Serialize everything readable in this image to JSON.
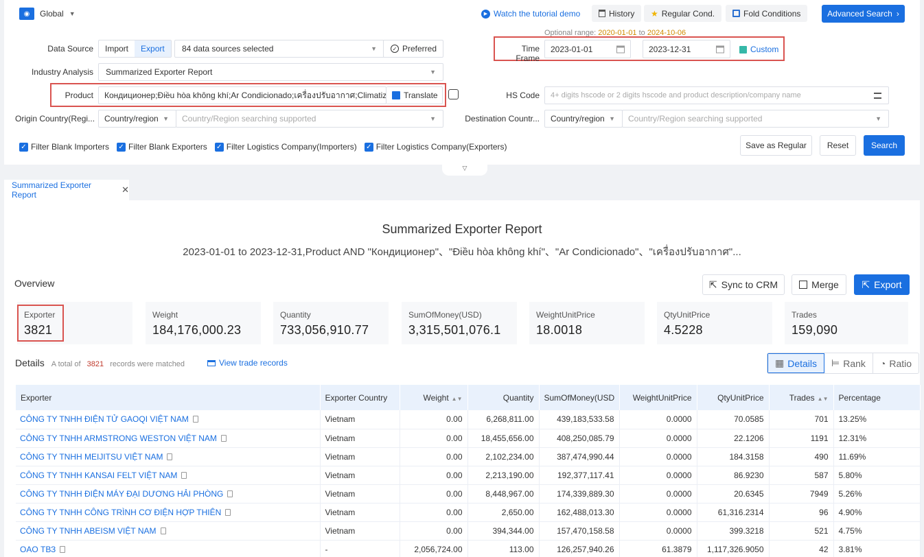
{
  "topbar": {
    "scope": "Global",
    "tutorial": "Watch the tutorial demo",
    "history": "History",
    "regular": "Regular Cond.",
    "fold": "Fold Conditions",
    "advanced": "Advanced Search"
  },
  "filters": {
    "optional_prefix": "Optional range:",
    "optional_start": "2020-01-01",
    "optional_to": "to",
    "optional_end": "2024-10-06",
    "data_source_label": "Data Source",
    "import": "Import",
    "export": "Export",
    "sources": "84 data sources selected",
    "preferred": "Preferred",
    "time_frame_label": "Time Frame",
    "date_start": "2023-01-01",
    "date_end": "2023-12-31",
    "custom": "Custom",
    "industry_label": "Industry Analysis",
    "industry_value": "Summarized Exporter Report",
    "product_label": "Product",
    "product_value": "Кондиционер;Điều hòa không khí;Ar Condicionado;เครื่องปรับอากาศ;Climatizador;K",
    "translate": "Translate",
    "hs_label": "HS Code",
    "hs_placeholder": "4+ digits hscode or 2 digits hscode and product description/company name",
    "origin_label": "Origin Country(Regi...",
    "origin_select": "Country/region",
    "origin_placeholder": "Country/Region searching supported",
    "dest_label": "Destination Countr...",
    "dest_select": "Country/region",
    "dest_placeholder": "Country/Region searching supported",
    "checks": [
      "Filter Blank Importers",
      "Filter Blank Exporters",
      "Filter Logistics Company(Importers)",
      "Filter Logistics Company(Exporters)"
    ],
    "save_regular": "Save as Regular",
    "reset": "Reset",
    "search": "Search"
  },
  "tab": {
    "label": "Summarized Exporter Report"
  },
  "report": {
    "title": "Summarized Exporter Report",
    "subtitle": "2023-01-01 to 2023-12-31,Product AND \"Кондиционер\"、\"Điều hòa không khí\"、\"Ar Condicionado\"、\"เครื่องปรับอากาศ\"...",
    "overview": "Overview",
    "sync": "Sync to CRM",
    "merge": "Merge",
    "export": "Export",
    "stats": [
      {
        "label": "Exporter",
        "value": "3821"
      },
      {
        "label": "Weight",
        "value": "184,176,000.23"
      },
      {
        "label": "Quantity",
        "value": "733,056,910.77"
      },
      {
        "label": "SumOfMoney(USD)",
        "value": "3,315,501,076.1"
      },
      {
        "label": "WeightUnitPrice",
        "value": "18.0018"
      },
      {
        "label": "QtyUnitPrice",
        "value": "4.5228"
      },
      {
        "label": "Trades",
        "value": "159,090"
      }
    ],
    "details": "Details",
    "total_prefix": "A total of",
    "total_count": "3821",
    "total_suffix": "records were matched",
    "view_trade": "View trade records",
    "views": [
      "Details",
      "Rank",
      "Ratio"
    ]
  },
  "table": {
    "headers": [
      "Exporter",
      "Exporter Country",
      "Weight",
      "Quantity",
      "SumOfMoney(USD",
      "WeightUnitPrice",
      "QtyUnitPrice",
      "Trades",
      "Percentage"
    ],
    "rows": [
      [
        "CÔNG TY TNHH ĐIỆN TỬ GAOQI VIỆT NAM",
        "Vietnam",
        "0.00",
        "6,268,811.00",
        "439,183,533.58",
        "0.0000",
        "70.0585",
        "701",
        "13.25%"
      ],
      [
        "CÔNG TY TNHH ARMSTRONG WESTON VIỆT NAM",
        "Vietnam",
        "0.00",
        "18,455,656.00",
        "408,250,085.79",
        "0.0000",
        "22.1206",
        "1191",
        "12.31%"
      ],
      [
        "CÔNG TY TNHH MEIJITSU VIỆT NAM",
        "Vietnam",
        "0.00",
        "2,102,234.00",
        "387,474,990.44",
        "0.0000",
        "184.3158",
        "490",
        "11.69%"
      ],
      [
        "CÔNG TY TNHH KANSAI FELT VIỆT NAM",
        "Vietnam",
        "0.00",
        "2,213,190.00",
        "192,377,117.41",
        "0.0000",
        "86.9230",
        "587",
        "5.80%"
      ],
      [
        "CÔNG TY TNHH ĐIỆN MÁY ĐẠI DƯƠNG HẢI PHÒNG",
        "Vietnam",
        "0.00",
        "8,448,967.00",
        "174,339,889.30",
        "0.0000",
        "20.6345",
        "7949",
        "5.26%"
      ],
      [
        "CÔNG TY TNHH CÔNG TRÌNH CƠ ĐIỆN HỢP THIÊN",
        "Vietnam",
        "0.00",
        "2,650.00",
        "162,488,013.30",
        "0.0000",
        "61,316.2314",
        "96",
        "4.90%"
      ],
      [
        "CÔNG TY TNHH ABEISM VIỆT NAM",
        "Vietnam",
        "0.00",
        "394,344.00",
        "157,470,158.58",
        "0.0000",
        "399.3218",
        "521",
        "4.75%"
      ],
      [
        "OAO ТВЗ",
        "-",
        "2,056,724.00",
        "113.00",
        "126,257,940.26",
        "61.3879",
        "1,117,326.9050",
        "42",
        "3.81%"
      ]
    ]
  }
}
